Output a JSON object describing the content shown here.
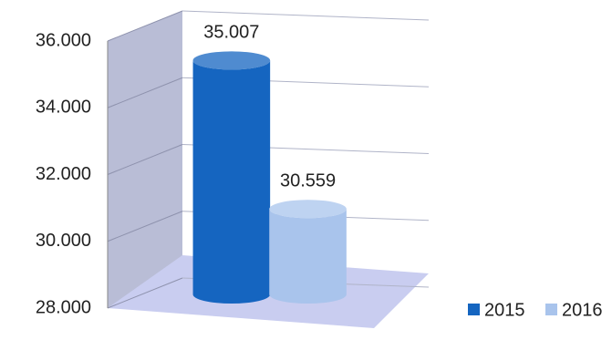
{
  "chart_data": {
    "type": "cylinder",
    "categories": [
      null
    ],
    "series": [
      {
        "name": "2015",
        "color": "#1565c0",
        "values": [
          35007
        ],
        "value_labels": [
          "35.007"
        ]
      },
      {
        "name": "2016",
        "color": "#a9c4ec",
        "values": [
          30559
        ],
        "value_labels": [
          "30.559"
        ]
      }
    ],
    "ylim": [
      28000,
      36000
    ],
    "yticks": [
      {
        "value": 28000,
        "label": "28.000"
      },
      {
        "value": 30000,
        "label": "30.000"
      },
      {
        "value": 32000,
        "label": "32.000"
      },
      {
        "value": 34000,
        "label": "34.000"
      },
      {
        "value": 36000,
        "label": "36.000"
      }
    ],
    "grid": true,
    "legend": "bottom-right"
  }
}
